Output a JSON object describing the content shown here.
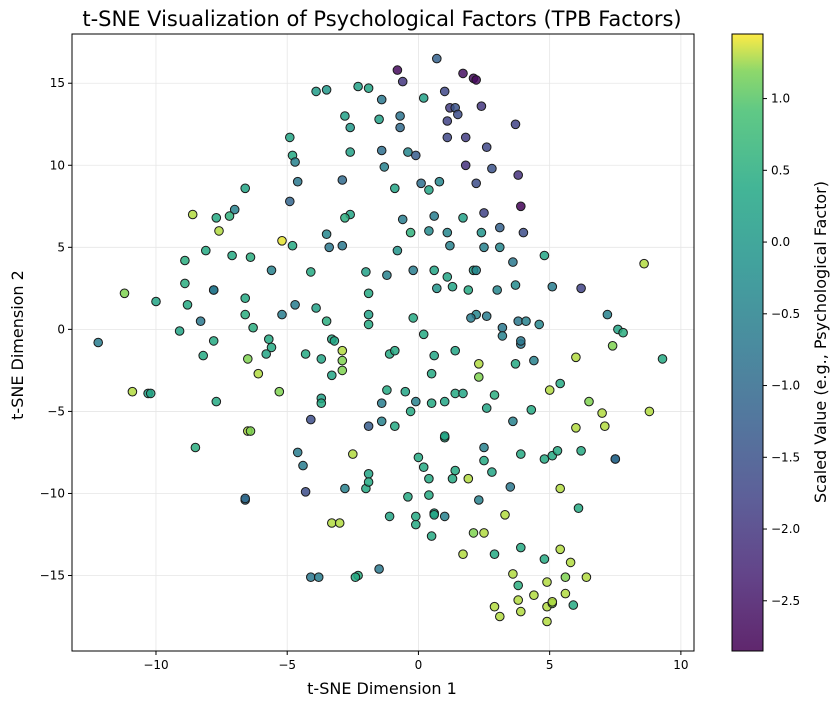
{
  "chart_data": {
    "type": "scatter",
    "title": "t-SNE Visualization of Psychological Factors (TPB Factors)",
    "xlabel": "t-SNE Dimension 1",
    "ylabel": "t-SNE Dimension 2",
    "xlim": [
      -13.2,
      10.5
    ],
    "ylim": [
      -19.6,
      18.0
    ],
    "xticks": [
      -10,
      -5,
      0,
      5,
      10
    ],
    "xtick_labels": [
      "−10",
      "−5",
      "0",
      "5",
      "10"
    ],
    "yticks": [
      -15,
      -10,
      -5,
      0,
      5,
      10,
      15
    ],
    "ytick_labels": [
      "−15",
      "−10",
      "−5",
      "0",
      "5",
      "10",
      "15"
    ],
    "grid": true,
    "colormap": "viridis",
    "colorbar": {
      "label": "Scaled Value (e.g., Psychological Factor)",
      "range": [
        -2.85,
        1.45
      ],
      "ticks": [
        1.0,
        0.5,
        0.0,
        -0.5,
        -1.0,
        -1.5,
        -2.0,
        -2.5
      ],
      "tick_labels": [
        "1.0",
        "0.5",
        "0.0",
        "−0.5",
        "−1.0",
        "−1.5",
        "−2.0",
        "−2.5"
      ]
    },
    "points": [
      [
        -0.8,
        15.8,
        -2.7
      ],
      [
        -0.6,
        15.1,
        -2.0
      ],
      [
        0.7,
        16.5,
        -1.2
      ],
      [
        1.7,
        15.6,
        -2.6
      ],
      [
        2.1,
        15.3,
        -2.7
      ],
      [
        2.2,
        15.2,
        -2.7
      ],
      [
        -1.9,
        14.7,
        0.3
      ],
      [
        -2.3,
        14.8,
        0.2
      ],
      [
        -3.5,
        14.6,
        0.0
      ],
      [
        -3.9,
        14.5,
        0.1
      ],
      [
        -1.4,
        14.0,
        -0.7
      ],
      [
        0.2,
        14.1,
        0.2
      ],
      [
        1.0,
        14.5,
        -1.7
      ],
      [
        -2.8,
        13.0,
        0.2
      ],
      [
        -2.6,
        12.3,
        0.0
      ],
      [
        -1.5,
        12.8,
        0.2
      ],
      [
        -0.7,
        13.0,
        -0.8
      ],
      [
        -0.7,
        12.3,
        -1.0
      ],
      [
        1.2,
        13.5,
        -1.9
      ],
      [
        1.4,
        13.5,
        -1.5
      ],
      [
        1.5,
        13.1,
        -1.6
      ],
      [
        2.4,
        13.6,
        -2.0
      ],
      [
        3.7,
        12.5,
        -1.8
      ],
      [
        1.1,
        12.7,
        -1.8
      ],
      [
        -4.9,
        11.7,
        0.3
      ],
      [
        -4.8,
        10.6,
        0.4
      ],
      [
        -2.6,
        10.8,
        0.2
      ],
      [
        -1.4,
        10.9,
        -0.9
      ],
      [
        -0.4,
        10.8,
        -0.4
      ],
      [
        -0.1,
        10.6,
        -1.3
      ],
      [
        1.1,
        11.7,
        -1.7
      ],
      [
        1.8,
        11.7,
        -1.9
      ],
      [
        2.6,
        11.1,
        -1.7
      ],
      [
        1.8,
        10.0,
        -2.1
      ],
      [
        2.8,
        9.8,
        -1.5
      ],
      [
        3.8,
        9.4,
        -2.1
      ],
      [
        -4.7,
        10.2,
        -0.5
      ],
      [
        -1.3,
        9.9,
        -0.5
      ],
      [
        -2.9,
        9.1,
        -1.0
      ],
      [
        -0.9,
        8.6,
        0.3
      ],
      [
        0.1,
        8.9,
        -0.9
      ],
      [
        0.4,
        8.5,
        0.3
      ],
      [
        0.8,
        9.0,
        -0.4
      ],
      [
        2.2,
        8.9,
        -1.6
      ],
      [
        -4.6,
        9.0,
        -0.7
      ],
      [
        -6.6,
        8.6,
        0.3
      ],
      [
        -7.0,
        7.3,
        -0.5
      ],
      [
        -4.9,
        7.8,
        -1.1
      ],
      [
        3.9,
        7.5,
        -2.8
      ],
      [
        -8.6,
        7.0,
        1.3
      ],
      [
        -7.7,
        6.8,
        0.4
      ],
      [
        -7.2,
        6.9,
        0.6
      ],
      [
        -2.6,
        7.0,
        0.3
      ],
      [
        -2.8,
        6.8,
        0.5
      ],
      [
        -0.6,
        6.7,
        -0.6
      ],
      [
        0.6,
        6.9,
        -0.6
      ],
      [
        1.7,
        6.8,
        0.2
      ],
      [
        2.5,
        7.1,
        -1.8
      ],
      [
        -0.3,
        5.9,
        0.6
      ],
      [
        0.4,
        6.0,
        -0.3
      ],
      [
        1.1,
        5.9,
        -0.4
      ],
      [
        2.4,
        5.9,
        -0.1
      ],
      [
        3.1,
        6.2,
        -1.2
      ],
      [
        4.0,
        5.9,
        -1.6
      ],
      [
        -7.6,
        6.0,
        1.3
      ],
      [
        -5.2,
        5.4,
        1.4
      ],
      [
        -4.8,
        5.1,
        0.4
      ],
      [
        -3.5,
        5.8,
        -0.4
      ],
      [
        -2.9,
        5.1,
        -0.7
      ],
      [
        -3.4,
        5.0,
        -0.7
      ],
      [
        -0.8,
        4.8,
        -0.1
      ],
      [
        1.2,
        5.1,
        -0.5
      ],
      [
        2.5,
        5.0,
        -0.5
      ],
      [
        3.1,
        5.0,
        -0.4
      ],
      [
        -8.9,
        4.2,
        0.5
      ],
      [
        -8.1,
        4.8,
        0.4
      ],
      [
        -7.1,
        4.5,
        0.4
      ],
      [
        -6.4,
        4.4,
        0.5
      ],
      [
        -5.6,
        3.6,
        -0.5
      ],
      [
        -4.1,
        3.5,
        0.4
      ],
      [
        -2.0,
        3.5,
        0.2
      ],
      [
        -1.2,
        3.3,
        -0.5
      ],
      [
        0.6,
        3.6,
        0.3
      ],
      [
        -0.2,
        3.6,
        -0.6
      ],
      [
        1.1,
        3.2,
        0.3
      ],
      [
        2.1,
        3.6,
        0.2
      ],
      [
        2.2,
        3.6,
        -0.4
      ],
      [
        3.6,
        4.1,
        -0.7
      ],
      [
        4.8,
        4.5,
        0.3
      ],
      [
        8.6,
        4.0,
        1.3
      ],
      [
        -11.2,
        2.2,
        1.2
      ],
      [
        -10.0,
        1.7,
        0.3
      ],
      [
        -8.9,
        2.8,
        0.5
      ],
      [
        -7.8,
        2.4,
        -0.5
      ],
      [
        -7.8,
        2.4,
        -0.7
      ],
      [
        -6.6,
        1.9,
        0.4
      ],
      [
        -4.7,
        1.5,
        -0.6
      ],
      [
        -3.9,
        1.3,
        0.2
      ],
      [
        -1.9,
        2.2,
        0.4
      ],
      [
        0.7,
        2.5,
        -0.1
      ],
      [
        1.3,
        2.6,
        0.3
      ],
      [
        1.9,
        2.4,
        0.4
      ],
      [
        3.0,
        2.4,
        -0.4
      ],
      [
        3.7,
        2.7,
        -0.3
      ],
      [
        5.1,
        2.6,
        -0.6
      ],
      [
        6.2,
        2.5,
        -1.8
      ],
      [
        -10.9,
        -3.8,
        1.3
      ],
      [
        -10.3,
        -3.9,
        0.2
      ],
      [
        -10.2,
        -3.9,
        0.3
      ],
      [
        -9.1,
        -0.1,
        0.3
      ],
      [
        -8.8,
        1.5,
        0.4
      ],
      [
        -8.5,
        -7.2,
        0.5
      ],
      [
        -8.3,
        0.5,
        -0.7
      ],
      [
        -8.2,
        -1.6,
        0.4
      ],
      [
        -7.8,
        -0.7,
        0.4
      ],
      [
        -7.7,
        -4.4,
        0.4
      ],
      [
        -6.6,
        0.9,
        0.5
      ],
      [
        -6.5,
        -1.8,
        1.2
      ],
      [
        -6.3,
        0.1,
        0.5
      ],
      [
        -6.1,
        -2.7,
        1.3
      ],
      [
        -5.8,
        -1.5,
        0.3
      ],
      [
        -5.7,
        -0.6,
        0.4
      ],
      [
        -5.6,
        -1.1,
        0.4
      ],
      [
        -5.3,
        -3.8,
        1.2
      ],
      [
        -5.2,
        0.9,
        -0.6
      ],
      [
        -4.3,
        -1.5,
        0.4
      ],
      [
        -3.7,
        -1.8,
        0.3
      ],
      [
        -3.7,
        -4.2,
        0.2
      ],
      [
        -3.7,
        -4.5,
        0.4
      ],
      [
        -3.5,
        0.5,
        0.5
      ],
      [
        -3.3,
        -0.6,
        0.4
      ],
      [
        -3.3,
        -2.8,
        0.3
      ],
      [
        -2.9,
        -1.3,
        1.3
      ],
      [
        -2.9,
        -1.9,
        1.2
      ],
      [
        -2.9,
        -2.5,
        1.2
      ],
      [
        -3.2,
        -0.7,
        0.3
      ],
      [
        -1.9,
        0.9,
        0.2
      ],
      [
        -1.9,
        0.3,
        0.4
      ],
      [
        -1.4,
        -5.6,
        -0.5
      ],
      [
        -1.4,
        -4.5,
        -0.6
      ],
      [
        -1.2,
        -3.7,
        0.4
      ],
      [
        -1.1,
        -1.5,
        0.4
      ],
      [
        -0.9,
        -1.3,
        0.4
      ],
      [
        -0.5,
        -3.8,
        0.3
      ],
      [
        -0.3,
        -5.0,
        0.4
      ],
      [
        -0.2,
        0.7,
        0.4
      ],
      [
        0.2,
        -0.3,
        0.4
      ],
      [
        -0.1,
        -4.4,
        -0.5
      ],
      [
        0.5,
        -4.5,
        0.4
      ],
      [
        0.5,
        -2.7,
        0.4
      ],
      [
        0.6,
        -1.6,
        0.3
      ],
      [
        1.0,
        -4.4,
        0.3
      ],
      [
        1.4,
        -3.9,
        0.4
      ],
      [
        1.4,
        -1.3,
        0.3
      ],
      [
        1.7,
        -3.9,
        0.3
      ],
      [
        2.2,
        0.9,
        -0.4
      ],
      [
        2.0,
        0.7,
        -0.6
      ],
      [
        2.3,
        -2.1,
        1.3
      ],
      [
        2.3,
        -2.9,
        1.2
      ],
      [
        2.6,
        -4.8,
        0.3
      ],
      [
        2.6,
        0.8,
        -0.6
      ],
      [
        2.9,
        -4.0,
        0.5
      ],
      [
        3.2,
        0.1,
        -0.7
      ],
      [
        3.2,
        -0.4,
        -0.5
      ],
      [
        3.6,
        -5.6,
        -0.5
      ],
      [
        3.7,
        -2.1,
        0.4
      ],
      [
        3.9,
        -0.9,
        -0.7
      ],
      [
        3.9,
        -0.7,
        -0.7
      ],
      [
        3.8,
        0.5,
        -0.7
      ],
      [
        4.1,
        0.5,
        -0.5
      ],
      [
        4.4,
        -1.9,
        -0.5
      ],
      [
        4.6,
        0.3,
        -0.4
      ],
      [
        5.4,
        -3.3,
        0.4
      ],
      [
        5.0,
        -3.7,
        1.3
      ],
      [
        5.4,
        -9.7,
        1.3
      ],
      [
        6.0,
        -1.7,
        1.3
      ],
      [
        6.0,
        -6.0,
        1.3
      ],
      [
        6.1,
        -10.9,
        0.4
      ],
      [
        6.2,
        -7.4,
        0.4
      ],
      [
        6.5,
        -4.4,
        1.2
      ],
      [
        7.0,
        -5.1,
        1.3
      ],
      [
        7.1,
        -5.9,
        1.3
      ],
      [
        7.2,
        0.9,
        -0.5
      ],
      [
        7.4,
        -1.0,
        1.2
      ],
      [
        7.5,
        -7.9,
        -0.9
      ],
      [
        7.5,
        -7.9,
        -1.0
      ],
      [
        7.6,
        0.0,
        0.3
      ],
      [
        7.8,
        -0.2,
        0.5
      ],
      [
        8.8,
        -5.0,
        1.3
      ],
      [
        9.3,
        -1.8,
        0.4
      ],
      [
        4.8,
        -7.9,
        0.4
      ],
      [
        5.1,
        -7.7,
        0.4
      ],
      [
        5.3,
        -7.4,
        0.4
      ],
      [
        4.3,
        -4.9,
        0.4
      ],
      [
        -12.2,
        -0.8,
        -0.6
      ],
      [
        -6.5,
        -6.2,
        1.3
      ],
      [
        -6.4,
        -6.2,
        1.2
      ],
      [
        -6.6,
        -10.4,
        -0.9
      ],
      [
        -6.6,
        -10.3,
        -1.0
      ],
      [
        -4.6,
        -7.5,
        -0.6
      ],
      [
        -4.4,
        -8.3,
        -0.6
      ],
      [
        -4.3,
        -9.9,
        -1.6
      ],
      [
        -4.1,
        -5.5,
        -1.6
      ],
      [
        -2.5,
        -7.6,
        1.3
      ],
      [
        -2.8,
        -9.7,
        -0.5
      ],
      [
        -1.9,
        -5.9,
        -1.3
      ],
      [
        -1.9,
        -8.8,
        0.3
      ],
      [
        -2.0,
        -9.7,
        0.4
      ],
      [
        -1.9,
        -9.3,
        0.4
      ],
      [
        -0.9,
        -5.9,
        0.4
      ],
      [
        -1.1,
        -11.4,
        0.3
      ],
      [
        -0.4,
        -10.2,
        0.4
      ],
      [
        0.0,
        -7.8,
        0.4
      ],
      [
        0.2,
        -8.4,
        0.4
      ],
      [
        0.4,
        -9.1,
        0.4
      ],
      [
        0.4,
        -10.1,
        0.4
      ],
      [
        1.0,
        -6.6,
        0.4
      ],
      [
        1.0,
        -6.5,
        0.3
      ],
      [
        1.3,
        -9.1,
        0.4
      ],
      [
        1.4,
        -8.6,
        0.4
      ],
      [
        1.9,
        -9.1,
        1.3
      ],
      [
        2.5,
        -7.2,
        -0.5
      ],
      [
        2.3,
        -10.4,
        -0.5
      ],
      [
        2.5,
        -8.0,
        0.4
      ],
      [
        2.8,
        -8.7,
        0.3
      ],
      [
        3.5,
        -9.6,
        -0.7
      ],
      [
        3.9,
        -7.6,
        0.4
      ],
      [
        -0.1,
        -11.9,
        0.4
      ],
      [
        0.6,
        -11.2,
        0.4
      ],
      [
        0.6,
        -11.3,
        0.3
      ],
      [
        -0.1,
        -11.4,
        0.4
      ],
      [
        0.5,
        -12.6,
        0.4
      ],
      [
        2.1,
        -12.4,
        1.2
      ],
      [
        2.5,
        -12.4,
        1.3
      ],
      [
        3.3,
        -11.3,
        1.3
      ],
      [
        1.0,
        -11.4,
        -0.5
      ],
      [
        -3.3,
        -11.8,
        1.3
      ],
      [
        -3.0,
        -11.8,
        1.3
      ],
      [
        -2.3,
        -15.0,
        0.5
      ],
      [
        -2.4,
        -15.1,
        0.4
      ],
      [
        -4.1,
        -15.1,
        -0.7
      ],
      [
        -3.8,
        -15.1,
        -0.6
      ],
      [
        -1.5,
        -14.6,
        -0.7
      ],
      [
        1.7,
        -13.7,
        1.3
      ],
      [
        2.9,
        -13.7,
        0.4
      ],
      [
        3.9,
        -13.3,
        0.4
      ],
      [
        3.6,
        -14.9,
        1.3
      ],
      [
        3.8,
        -15.6,
        0.5
      ],
      [
        4.4,
        -16.2,
        1.3
      ],
      [
        4.8,
        -14.0,
        0.4
      ],
      [
        5.4,
        -13.4,
        1.3
      ],
      [
        5.8,
        -14.2,
        1.3
      ],
      [
        4.9,
        -15.4,
        1.3
      ],
      [
        5.6,
        -15.1,
        1.2
      ],
      [
        6.4,
        -15.1,
        1.3
      ],
      [
        3.8,
        -16.5,
        1.3
      ],
      [
        4.9,
        -16.9,
        1.3
      ],
      [
        5.1,
        -16.7,
        1.2
      ],
      [
        5.1,
        -16.6,
        1.3
      ],
      [
        5.6,
        -16.1,
        1.3
      ],
      [
        5.9,
        -16.8,
        0.4
      ],
      [
        2.9,
        -16.9,
        1.3
      ],
      [
        3.1,
        -17.5,
        1.3
      ],
      [
        3.9,
        -17.2,
        1.3
      ],
      [
        4.9,
        -17.8,
        1.3
      ]
    ]
  }
}
